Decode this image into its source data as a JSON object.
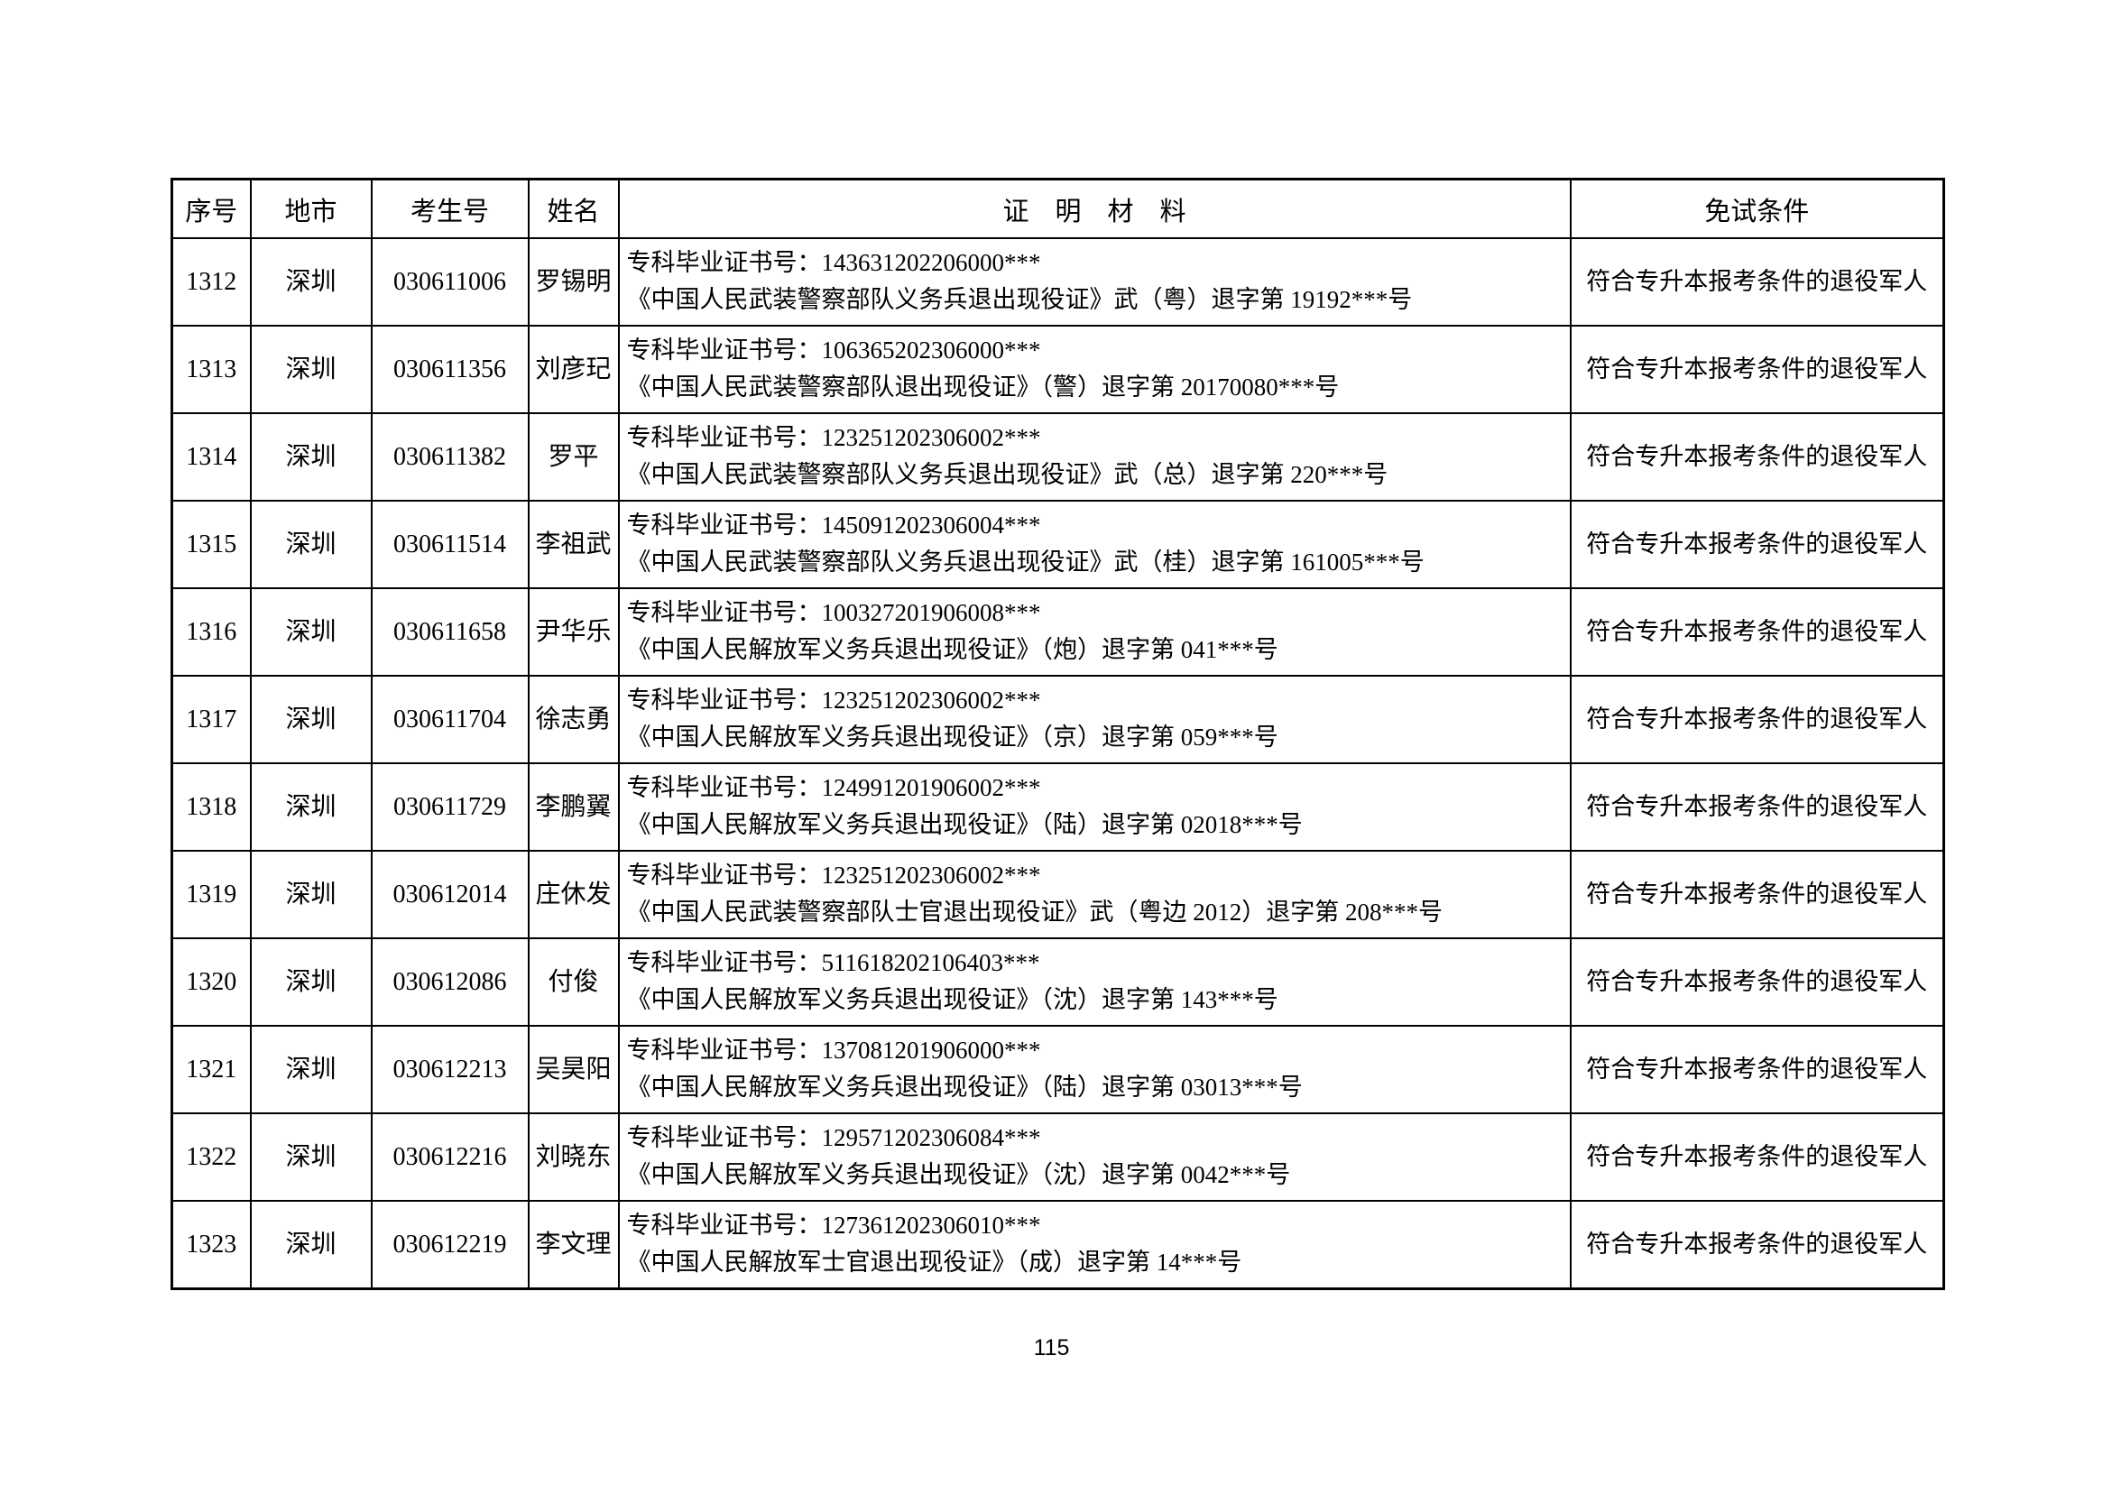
{
  "page": {
    "number": "115"
  },
  "table": {
    "headers": [
      "序号",
      "地市",
      "考生号",
      "姓名",
      "证　明　材　料",
      "免试条件"
    ],
    "rows": [
      {
        "no": "1312",
        "city": "深圳",
        "candidate_id": "030611006",
        "name": "罗锡明",
        "proof_line1": "专科毕业证书号：143631202206000***",
        "proof_line2": "《中国人民武装警察部队义务兵退出现役证》武（粤）退字第 19192***号",
        "exemption": "符合专升本报考条件的退役军人"
      },
      {
        "no": "1313",
        "city": "深圳",
        "candidate_id": "030611356",
        "name": "刘彦玘",
        "proof_line1": "专科毕业证书号：106365202306000***",
        "proof_line2": "《中国人民武装警察部队退出现役证》（警）退字第 20170080***号",
        "exemption": "符合专升本报考条件的退役军人"
      },
      {
        "no": "1314",
        "city": "深圳",
        "candidate_id": "030611382",
        "name": "罗平",
        "proof_line1": "专科毕业证书号：123251202306002***",
        "proof_line2": "《中国人民武装警察部队义务兵退出现役证》武（总）退字第 220***号",
        "exemption": "符合专升本报考条件的退役军人"
      },
      {
        "no": "1315",
        "city": "深圳",
        "candidate_id": "030611514",
        "name": "李祖武",
        "proof_line1": "专科毕业证书号：145091202306004***",
        "proof_line2": "《中国人民武装警察部队义务兵退出现役证》武（桂）退字第 161005***号",
        "exemption": "符合专升本报考条件的退役军人"
      },
      {
        "no": "1316",
        "city": "深圳",
        "candidate_id": "030611658",
        "name": "尹华乐",
        "proof_line1": "专科毕业证书号：100327201906008***",
        "proof_line2": "《中国人民解放军义务兵退出现役证》（炮）退字第 041***号",
        "exemption": "符合专升本报考条件的退役军人"
      },
      {
        "no": "1317",
        "city": "深圳",
        "candidate_id": "030611704",
        "name": "徐志勇",
        "proof_line1": "专科毕业证书号：123251202306002***",
        "proof_line2": "《中国人民解放军义务兵退出现役证》（京）退字第 059***号",
        "exemption": "符合专升本报考条件的退役军人"
      },
      {
        "no": "1318",
        "city": "深圳",
        "candidate_id": "030611729",
        "name": "李鹏翼",
        "proof_line1": "专科毕业证书号：124991201906002***",
        "proof_line2": "《中国人民解放军义务兵退出现役证》（陆）退字第 02018***号",
        "exemption": "符合专升本报考条件的退役军人"
      },
      {
        "no": "1319",
        "city": "深圳",
        "candidate_id": "030612014",
        "name": "庄休发",
        "proof_line1": "专科毕业证书号：123251202306002***",
        "proof_line2": "《中国人民武装警察部队士官退出现役证》武（粤边 2012）退字第 208***号",
        "exemption": "符合专升本报考条件的退役军人"
      },
      {
        "no": "1320",
        "city": "深圳",
        "candidate_id": "030612086",
        "name": "付俊",
        "proof_line1": "专科毕业证书号：511618202106403***",
        "proof_line2": "《中国人民解放军义务兵退出现役证》（沈）退字第 143***号",
        "exemption": "符合专升本报考条件的退役军人"
      },
      {
        "no": "1321",
        "city": "深圳",
        "candidate_id": "030612213",
        "name": "吴昊阳",
        "proof_line1": "专科毕业证书号：137081201906000***",
        "proof_line2": "《中国人民解放军义务兵退出现役证》（陆）退字第 03013***号",
        "exemption": "符合专升本报考条件的退役军人"
      },
      {
        "no": "1322",
        "city": "深圳",
        "candidate_id": "030612216",
        "name": "刘晓东",
        "proof_line1": "专科毕业证书号：129571202306084***",
        "proof_line2": "《中国人民解放军义务兵退出现役证》（沈）退字第 0042***号",
        "exemption": "符合专升本报考条件的退役军人"
      },
      {
        "no": "1323",
        "city": "深圳",
        "candidate_id": "030612219",
        "name": "李文理",
        "proof_line1": "专科毕业证书号：127361202306010***",
        "proof_line2": "《中国人民解放军士官退出现役证》（成）退字第 14***号",
        "exemption": "符合专升本报考条件的退役军人"
      }
    ]
  }
}
